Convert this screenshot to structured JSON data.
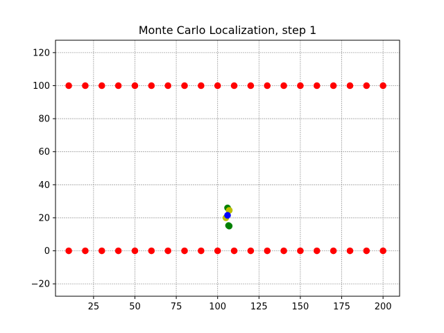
{
  "chart_data": {
    "type": "scatter",
    "title": "Monte Carlo Localization, step 1",
    "xlabel": "",
    "ylabel": "",
    "xlim": [
      2,
      210
    ],
    "ylim": [
      -27.5,
      127.5
    ],
    "x_ticks": [
      25,
      50,
      75,
      100,
      125,
      150,
      175,
      200
    ],
    "y_ticks": [
      -20,
      0,
      20,
      40,
      60,
      80,
      100,
      120
    ],
    "grid": true,
    "series": [
      {
        "color": "#ff0000",
        "points": [
          [
            10,
            100
          ],
          [
            20,
            100
          ],
          [
            30,
            100
          ],
          [
            40,
            100
          ],
          [
            50,
            100
          ],
          [
            60,
            100
          ],
          [
            70,
            100
          ],
          [
            80,
            100
          ],
          [
            90,
            100
          ],
          [
            100,
            100
          ],
          [
            110,
            100
          ],
          [
            120,
            100
          ],
          [
            130,
            100
          ],
          [
            140,
            100
          ],
          [
            150,
            100
          ],
          [
            160,
            100
          ],
          [
            170,
            100
          ],
          [
            180,
            100
          ],
          [
            190,
            100
          ],
          [
            200,
            100
          ],
          [
            10,
            0
          ],
          [
            20,
            0
          ],
          [
            30,
            0
          ],
          [
            40,
            0
          ],
          [
            50,
            0
          ],
          [
            60,
            0
          ],
          [
            70,
            0
          ],
          [
            80,
            0
          ],
          [
            90,
            0
          ],
          [
            100,
            0
          ],
          [
            110,
            0
          ],
          [
            120,
            0
          ],
          [
            130,
            0
          ],
          [
            140,
            0
          ],
          [
            150,
            0
          ],
          [
            160,
            0
          ],
          [
            170,
            0
          ],
          [
            180,
            0
          ],
          [
            190,
            0
          ],
          [
            200,
            0
          ]
        ]
      },
      {
        "color": "#008000",
        "points": [
          [
            106,
            26
          ],
          [
            107,
            24.5
          ],
          [
            107,
            15
          ],
          [
            106.6,
            15.3
          ]
        ]
      },
      {
        "color": "#bfbf00",
        "points": [
          [
            107,
            24.5
          ],
          [
            105,
            20
          ]
        ]
      },
      {
        "color": "#0000ff",
        "points": [
          [
            106,
            21.5
          ]
        ]
      }
    ]
  }
}
